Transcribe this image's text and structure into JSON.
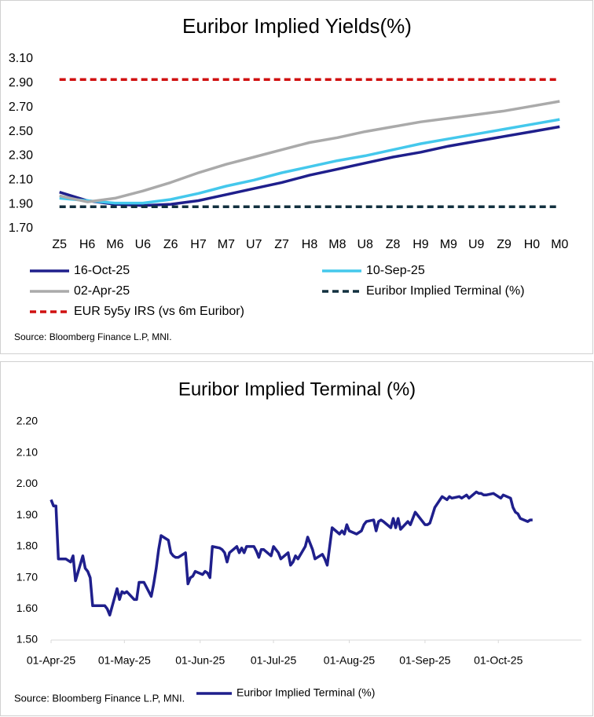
{
  "chart_data": [
    {
      "type": "line",
      "title": "Euribor Implied Yields(%)",
      "source": "Source: Bloomberg Finance L.P, MNI.",
      "categories": [
        "Z5",
        "H6",
        "M6",
        "U6",
        "Z6",
        "H7",
        "M7",
        "U7",
        "Z7",
        "H8",
        "M8",
        "U8",
        "Z8",
        "H9",
        "M9",
        "U9",
        "Z9",
        "H0",
        "M0"
      ],
      "ylim": [
        1.7,
        3.1
      ],
      "yticks": [
        {
          "value": 1.7,
          "label": "1.70"
        },
        {
          "value": 1.9,
          "label": "1.90"
        },
        {
          "value": 2.1,
          "label": "2.10"
        },
        {
          "value": 2.3,
          "label": "2.30"
        },
        {
          "value": 2.5,
          "label": "2.50"
        },
        {
          "value": 2.7,
          "label": "2.70"
        },
        {
          "value": 2.9,
          "label": "2.90"
        },
        {
          "value": 3.1,
          "label": "3.10"
        }
      ],
      "series": [
        {
          "name": "16-Oct-25",
          "color": "#1f1f8c",
          "dashed": false,
          "values": [
            2.0,
            1.93,
            1.9,
            1.89,
            1.9,
            1.93,
            1.98,
            2.03,
            2.08,
            2.14,
            2.19,
            2.24,
            2.29,
            2.33,
            2.38,
            2.42,
            2.46,
            2.5,
            2.54
          ]
        },
        {
          "name": "10-Sep-25",
          "color": "#44c8ec",
          "dashed": false,
          "values": [
            1.95,
            1.93,
            1.91,
            1.91,
            1.94,
            1.99,
            2.05,
            2.1,
            2.16,
            2.21,
            2.26,
            2.3,
            2.35,
            2.4,
            2.44,
            2.48,
            2.52,
            2.56,
            2.6
          ]
        },
        {
          "name": "02-Apr-25",
          "color": "#aaaaaa",
          "dashed": false,
          "values": [
            1.97,
            1.92,
            1.95,
            2.01,
            2.08,
            2.16,
            2.23,
            2.29,
            2.35,
            2.41,
            2.45,
            2.5,
            2.54,
            2.58,
            2.61,
            2.64,
            2.67,
            2.71,
            2.75
          ]
        },
        {
          "name": "Euribor Implied Terminal (%)",
          "color": "#12303f",
          "dashed": true,
          "values": [
            1.88,
            1.88,
            1.88,
            1.88,
            1.88,
            1.88,
            1.88,
            1.88,
            1.88,
            1.88,
            1.88,
            1.88,
            1.88,
            1.88,
            1.88,
            1.88,
            1.88,
            1.88,
            1.88
          ]
        },
        {
          "name": "EUR 5y5y IRS (vs 6m Euribor)",
          "color": "#d01010",
          "dashed": true,
          "values": [
            2.93,
            2.93,
            2.93,
            2.93,
            2.93,
            2.93,
            2.93,
            2.93,
            2.93,
            2.93,
            2.93,
            2.93,
            2.93,
            2.93,
            2.93,
            2.93,
            2.93,
            2.93,
            2.93
          ]
        }
      ]
    },
    {
      "type": "line",
      "title": "Euribor Implied Terminal (%)",
      "source": "Source: Bloomberg Finance L.P, MNI.",
      "x": [
        "2025-04-01",
        "2025-04-02",
        "2025-04-03",
        "2025-04-04",
        "2025-04-07",
        "2025-04-08",
        "2025-04-09",
        "2025-04-10",
        "2025-04-11",
        "2025-04-14",
        "2025-04-15",
        "2025-04-16",
        "2025-04-17",
        "2025-04-18",
        "2025-04-22",
        "2025-04-23",
        "2025-04-24",
        "2025-04-25",
        "2025-04-28",
        "2025-04-29",
        "2025-04-30",
        "2025-05-01",
        "2025-05-02",
        "2025-05-05",
        "2025-05-06",
        "2025-05-07",
        "2025-05-08",
        "2025-05-09",
        "2025-05-12",
        "2025-05-13",
        "2025-05-14",
        "2025-05-15",
        "2025-05-16",
        "2025-05-19",
        "2025-05-20",
        "2025-05-21",
        "2025-05-22",
        "2025-05-23",
        "2025-05-26",
        "2025-05-27",
        "2025-05-28",
        "2025-05-29",
        "2025-05-30",
        "2025-06-02",
        "2025-06-03",
        "2025-06-04",
        "2025-06-05",
        "2025-06-06",
        "2025-06-09",
        "2025-06-10",
        "2025-06-11",
        "2025-06-12",
        "2025-06-13",
        "2025-06-16",
        "2025-06-17",
        "2025-06-18",
        "2025-06-19",
        "2025-06-20",
        "2025-06-23",
        "2025-06-24",
        "2025-06-25",
        "2025-06-26",
        "2025-06-27",
        "2025-06-30",
        "2025-07-01",
        "2025-07-02",
        "2025-07-03",
        "2025-07-04",
        "2025-07-07",
        "2025-07-08",
        "2025-07-09",
        "2025-07-10",
        "2025-07-11",
        "2025-07-14",
        "2025-07-15",
        "2025-07-16",
        "2025-07-17",
        "2025-07-18",
        "2025-07-21",
        "2025-07-22",
        "2025-07-23",
        "2025-07-24",
        "2025-07-25",
        "2025-07-28",
        "2025-07-29",
        "2025-07-30",
        "2025-07-31",
        "2025-08-01",
        "2025-08-04",
        "2025-08-05",
        "2025-08-06",
        "2025-08-07",
        "2025-08-08",
        "2025-08-11",
        "2025-08-12",
        "2025-08-13",
        "2025-08-14",
        "2025-08-15",
        "2025-08-18",
        "2025-08-19",
        "2025-08-20",
        "2025-08-21",
        "2025-08-22",
        "2025-08-25",
        "2025-08-26",
        "2025-08-27",
        "2025-08-28",
        "2025-08-29",
        "2025-09-01",
        "2025-09-02",
        "2025-09-03",
        "2025-09-04",
        "2025-09-05",
        "2025-09-08",
        "2025-09-09",
        "2025-09-10",
        "2025-09-11",
        "2025-09-12",
        "2025-09-15",
        "2025-09-16",
        "2025-09-17",
        "2025-09-18",
        "2025-09-19",
        "2025-09-22",
        "2025-09-23",
        "2025-09-24",
        "2025-09-25",
        "2025-09-26",
        "2025-09-29",
        "2025-09-30",
        "2025-10-01",
        "2025-10-02",
        "2025-10-03",
        "2025-10-06",
        "2025-10-07",
        "2025-10-08",
        "2025-10-09",
        "2025-10-10",
        "2025-10-13",
        "2025-10-14",
        "2025-10-15"
      ],
      "xlim": [
        "2025-04-01",
        "2025-11-04"
      ],
      "xticks": [
        {
          "value": "2025-04-01",
          "label": "01-Apr-25"
        },
        {
          "value": "2025-05-01",
          "label": "01-May-25"
        },
        {
          "value": "2025-06-01",
          "label": "01-Jun-25"
        },
        {
          "value": "2025-07-01",
          "label": "01-Jul-25"
        },
        {
          "value": "2025-08-01",
          "label": "01-Aug-25"
        },
        {
          "value": "2025-09-01",
          "label": "01-Sep-25"
        },
        {
          "value": "2025-10-01",
          "label": "01-Oct-25"
        }
      ],
      "ylim": [
        1.5,
        2.2
      ],
      "yticks": [
        {
          "value": 1.5,
          "label": "1.50"
        },
        {
          "value": 1.6,
          "label": "1.60"
        },
        {
          "value": 1.7,
          "label": "1.70"
        },
        {
          "value": 1.8,
          "label": "1.80"
        },
        {
          "value": 1.9,
          "label": "1.90"
        },
        {
          "value": 2.0,
          "label": "2.00"
        },
        {
          "value": 2.1,
          "label": "2.10"
        },
        {
          "value": 2.2,
          "label": "2.20"
        }
      ],
      "series": [
        {
          "name": "Euribor Implied Terminal (%)",
          "color": "#1f1f8c",
          "dashed": false,
          "values": [
            1.95,
            1.93,
            1.93,
            1.76,
            1.76,
            1.755,
            1.75,
            1.77,
            1.69,
            1.77,
            1.73,
            1.72,
            1.7,
            1.61,
            1.61,
            1.61,
            1.6,
            1.58,
            1.665,
            1.63,
            1.655,
            1.65,
            1.655,
            1.63,
            1.63,
            1.685,
            1.685,
            1.685,
            1.64,
            1.68,
            1.73,
            1.79,
            1.835,
            1.82,
            1.78,
            1.77,
            1.765,
            1.765,
            1.78,
            1.68,
            1.7,
            1.705,
            1.72,
            1.71,
            1.72,
            1.715,
            1.7,
            1.8,
            1.795,
            1.79,
            1.78,
            1.75,
            1.78,
            1.8,
            1.78,
            1.795,
            1.78,
            1.8,
            1.8,
            1.785,
            1.765,
            1.79,
            1.79,
            1.77,
            1.8,
            1.79,
            1.78,
            1.76,
            1.78,
            1.74,
            1.75,
            1.77,
            1.76,
            1.8,
            1.83,
            1.81,
            1.79,
            1.76,
            1.775,
            1.76,
            1.74,
            1.8,
            1.86,
            1.84,
            1.85,
            1.84,
            1.87,
            1.85,
            1.84,
            1.845,
            1.85,
            1.87,
            1.88,
            1.885,
            1.85,
            1.88,
            1.885,
            1.88,
            1.86,
            1.89,
            1.86,
            1.89,
            1.855,
            1.88,
            1.87,
            1.89,
            1.91,
            1.9,
            1.87,
            1.87,
            1.875,
            1.9,
            1.925,
            1.96,
            1.955,
            1.95,
            1.96,
            1.955,
            1.96,
            1.955,
            1.96,
            1.965,
            1.955,
            1.975,
            1.97,
            1.97,
            1.965,
            1.965,
            1.97,
            1.965,
            1.96,
            1.955,
            1.965,
            1.955,
            1.925,
            1.91,
            1.905,
            1.89,
            1.88,
            1.885,
            1.885
          ]
        }
      ]
    }
  ]
}
